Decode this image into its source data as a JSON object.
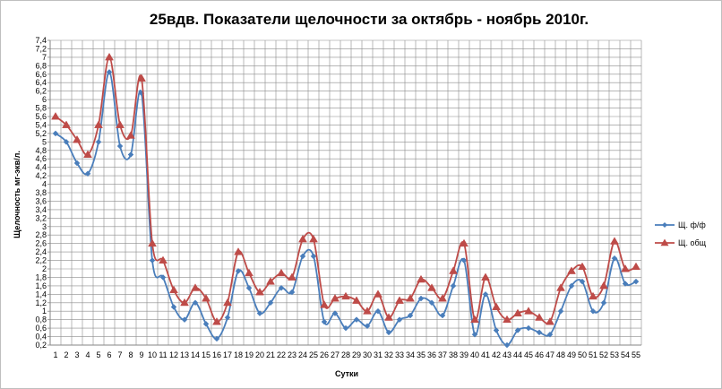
{
  "chart_data": {
    "type": "line",
    "title": "25вдв. Показатели щелочности за октябрь - ноябрь 2010г.",
    "xlabel": "Сутки",
    "ylabel": "Щелочность мг-экв/л.",
    "ylim": [
      0.2,
      7.4
    ],
    "yticks": [
      "0,2",
      "0,4",
      "0,6",
      "0,8",
      "1",
      "1,2",
      "1,4",
      "1,6",
      "1,8",
      "2",
      "2,2",
      "2,4",
      "2,6",
      "2,8",
      "3",
      "3,2",
      "3,4",
      "3,6",
      "3,8",
      "4",
      "4,2",
      "4,4",
      "4,6",
      "4,8",
      "5",
      "5,2",
      "5,4",
      "5,6",
      "5,8",
      "6",
      "6,2",
      "6,4",
      "6,6",
      "6,8",
      "7",
      "7,2",
      "7,4"
    ],
    "categories": [
      "1",
      "2",
      "3",
      "4",
      "5",
      "6",
      "7",
      "8",
      "9",
      "10",
      "11",
      "12",
      "13",
      "14",
      "15",
      "16",
      "17",
      "18",
      "19",
      "20",
      "21",
      "22",
      "23",
      "24",
      "25",
      "26",
      "27",
      "28",
      "29",
      "30",
      "31",
      "32",
      "33",
      "34",
      "35",
      "36",
      "37",
      "38",
      "39",
      "40",
      "41",
      "42",
      "43",
      "44",
      "45",
      "46",
      "47",
      "48",
      "49",
      "50",
      "51",
      "52",
      "53",
      "54",
      "55"
    ],
    "grid": true,
    "legend_position": "right",
    "series": [
      {
        "name": "Щ. ф/ф",
        "color": "#4a7ebb",
        "marker": "diamond",
        "values": [
          5.2,
          5.0,
          4.5,
          4.25,
          5.0,
          6.65,
          4.9,
          4.7,
          6.15,
          2.2,
          1.8,
          1.1,
          0.8,
          1.2,
          0.7,
          0.35,
          0.85,
          1.95,
          1.55,
          0.95,
          1.2,
          1.55,
          1.45,
          2.3,
          2.3,
          0.75,
          0.95,
          0.6,
          0.8,
          0.65,
          1.0,
          0.5,
          0.8,
          0.9,
          1.3,
          1.2,
          0.9,
          1.6,
          2.2,
          0.45,
          1.4,
          0.55,
          0.2,
          0.55,
          0.6,
          0.5,
          0.45,
          1.0,
          1.6,
          1.7,
          1.0,
          1.2,
          2.25,
          1.65,
          1.7
        ]
      },
      {
        "name": "Щ. общ",
        "color": "#be4b48",
        "marker": "triangle",
        "values": [
          5.6,
          5.4,
          5.05,
          4.7,
          5.4,
          7.0,
          5.4,
          5.15,
          6.5,
          2.6,
          2.2,
          1.5,
          1.2,
          1.55,
          1.3,
          0.75,
          1.2,
          2.4,
          1.9,
          1.45,
          1.7,
          1.9,
          1.8,
          2.7,
          2.7,
          1.15,
          1.3,
          1.35,
          1.25,
          1.0,
          1.4,
          0.85,
          1.25,
          1.3,
          1.75,
          1.55,
          1.3,
          1.95,
          2.6,
          0.8,
          1.8,
          1.1,
          0.8,
          0.95,
          1.0,
          0.85,
          0.75,
          1.55,
          1.95,
          2.05,
          1.35,
          1.6,
          2.65,
          2.0,
          2.05
        ]
      }
    ]
  }
}
